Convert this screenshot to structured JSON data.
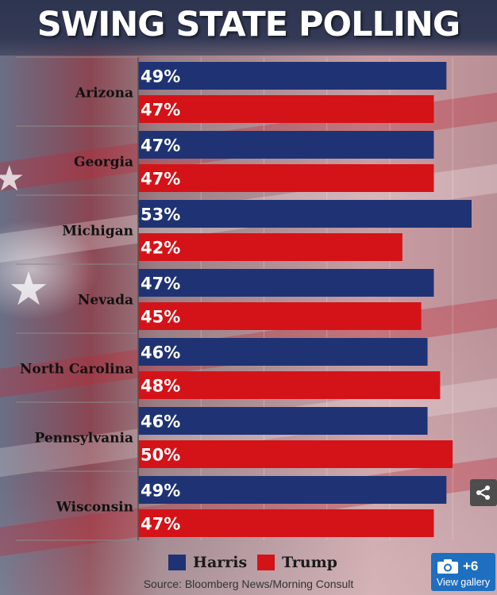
{
  "title": "SWING STATE POLLING",
  "source": "Source: Bloomberg News/Morning Consult",
  "colors": {
    "harris": "#1f3374",
    "trump": "#d41318"
  },
  "chart_data": {
    "type": "bar",
    "orientation": "horizontal",
    "title": "SWING STATE POLLING",
    "categories": [
      "Arizona",
      "Georgia",
      "Michigan",
      "Nevada",
      "North Carolina",
      "Pennsylvania",
      "Wisconsin"
    ],
    "series": [
      {
        "name": "Harris",
        "color": "#1f3374",
        "values": [
          49,
          47,
          53,
          47,
          46,
          46,
          49
        ],
        "labels": [
          "49%",
          "47%",
          "53%",
          "47%",
          "46%",
          "46%",
          "49%"
        ]
      },
      {
        "name": "Trump",
        "color": "#d41318",
        "values": [
          47,
          47,
          42,
          45,
          48,
          50,
          47
        ],
        "labels": [
          "47%",
          "47%",
          "42%",
          "45%",
          "48%",
          "50%",
          "47%"
        ]
      }
    ],
    "xlim": [
      0,
      53
    ],
    "grid": true,
    "legend_position": "bottom",
    "unit": "%"
  },
  "legend": {
    "harris": "Harris",
    "trump": "Trump"
  },
  "share_icon": "share-icon",
  "gallery": {
    "count": "+6",
    "label": "View gallery",
    "icon": "camera-icon"
  }
}
